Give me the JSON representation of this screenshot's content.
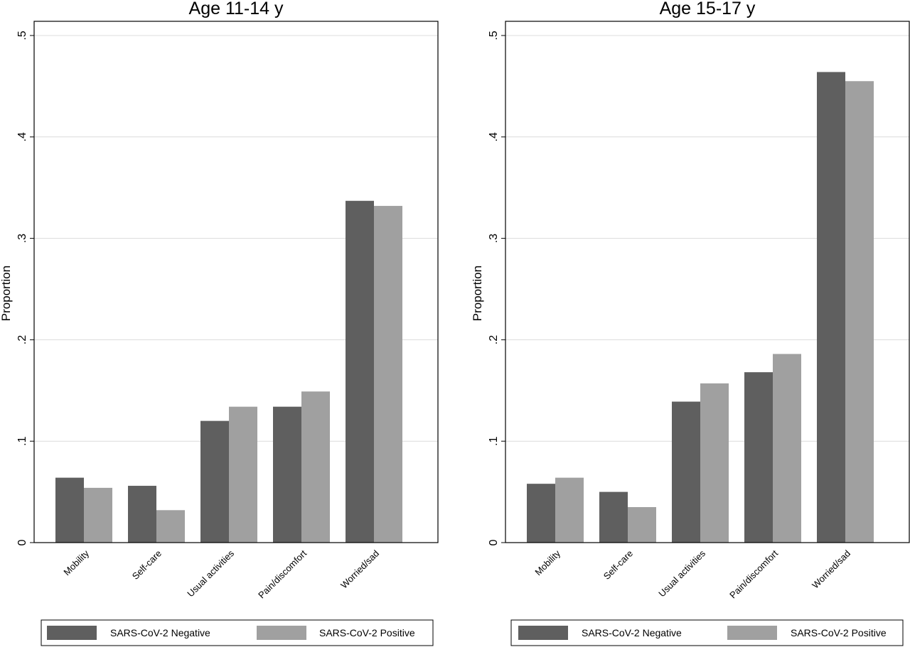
{
  "chart_data": [
    {
      "type": "bar",
      "title": "Age 11-14 y",
      "ylabel": "Proportion",
      "xlabel": "",
      "ylim": [
        0,
        0.5
      ],
      "yticks": [
        0,
        0.1,
        0.2,
        0.3,
        0.4,
        0.5
      ],
      "ytick_labels": [
        "0",
        ".1",
        ".2",
        ".3",
        ".4",
        ".5"
      ],
      "grid": true,
      "legend_position": "bottom",
      "categories": [
        "Mobility",
        "Self-care",
        "Usual activities",
        "Pain/discomfort",
        "Worried/sad"
      ],
      "series": [
        {
          "name": "SARS-CoV-2 Negative",
          "color": "#5f5f5f",
          "values": [
            0.064,
            0.056,
            0.12,
            0.134,
            0.337
          ]
        },
        {
          "name": "SARS-CoV-2 Positive",
          "color": "#a0a0a0",
          "values": [
            0.054,
            0.032,
            0.134,
            0.149,
            0.332
          ]
        }
      ]
    },
    {
      "type": "bar",
      "title": "Age 15-17 y",
      "ylabel": "Proportion",
      "xlabel": "",
      "ylim": [
        0,
        0.5
      ],
      "yticks": [
        0,
        0.1,
        0.2,
        0.3,
        0.4,
        0.5
      ],
      "ytick_labels": [
        "0",
        ".1",
        ".2",
        ".3",
        ".4",
        ".5"
      ],
      "grid": true,
      "legend_position": "bottom",
      "categories": [
        "Mobility",
        "Self-care",
        "Usual activities",
        "Pain/discomfort",
        "Worried/sad"
      ],
      "series": [
        {
          "name": "SARS-CoV-2 Negative",
          "color": "#5f5f5f",
          "values": [
            0.058,
            0.05,
            0.139,
            0.168,
            0.464
          ]
        },
        {
          "name": "SARS-CoV-2 Positive",
          "color": "#a0a0a0",
          "values": [
            0.064,
            0.035,
            0.157,
            0.186,
            0.455
          ]
        }
      ]
    }
  ]
}
